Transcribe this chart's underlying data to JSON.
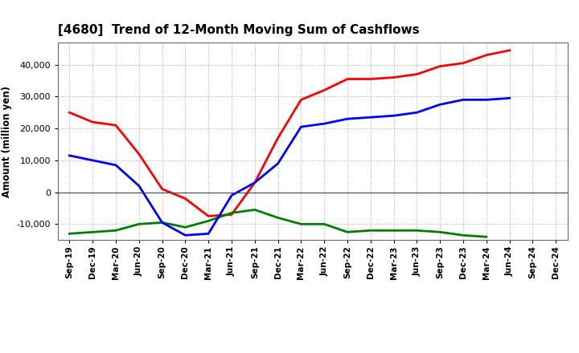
{
  "title": "[4680]  Trend of 12-Month Moving Sum of Cashflows",
  "ylabel": "Amount (million yen)",
  "background_color": "#ffffff",
  "grid_color": "#999999",
  "x_labels": [
    "Sep-19",
    "Dec-19",
    "Mar-20",
    "Jun-20",
    "Sep-20",
    "Dec-20",
    "Mar-21",
    "Jun-21",
    "Sep-21",
    "Dec-21",
    "Mar-22",
    "Jun-22",
    "Sep-22",
    "Dec-22",
    "Mar-23",
    "Jun-23",
    "Sep-23",
    "Dec-23",
    "Mar-24",
    "Jun-24",
    "Sep-24",
    "Dec-24"
  ],
  "operating_cashflow": [
    25000,
    22000,
    21000,
    12000,
    1000,
    -2000,
    -7500,
    -7000,
    3000,
    17000,
    29000,
    32000,
    35500,
    35500,
    36000,
    37000,
    39500,
    40500,
    43000,
    44500,
    null,
    null
  ],
  "investing_cashflow": [
    -13000,
    -12500,
    -12000,
    -10000,
    -9500,
    -11000,
    -9000,
    -6500,
    -5500,
    -8000,
    -10000,
    -10000,
    -12500,
    -12000,
    -12000,
    -12000,
    -12500,
    -13500,
    -14000,
    null,
    null,
    null
  ],
  "free_cashflow": [
    11500,
    10000,
    8500,
    2000,
    -9500,
    -13500,
    -13000,
    -1000,
    3000,
    9000,
    20500,
    21500,
    23000,
    23500,
    24000,
    25000,
    27500,
    29000,
    29000,
    29500,
    null,
    null
  ],
  "operating_color": "#ff0000",
  "investing_color": "#008000",
  "free_color": "#0000ff",
  "ylim": [
    -15000,
    47000
  ],
  "yticks": [
    -10000,
    0,
    10000,
    20000,
    30000,
    40000
  ],
  "line_width": 2.0,
  "figsize": [
    7.2,
    4.4
  ],
  "dpi": 100
}
